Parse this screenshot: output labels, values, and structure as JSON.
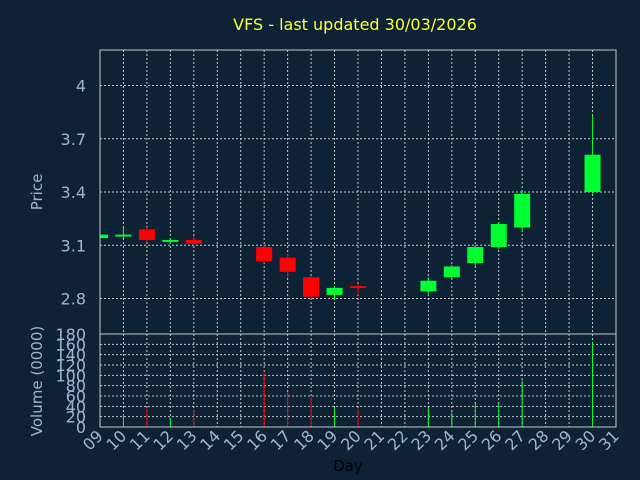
{
  "chart_data": {
    "type": "candlestick",
    "title": "VFS - last updated 30/03/2026",
    "xlabel": "Day",
    "price_panel": {
      "ylabel": "Price",
      "ylim": [
        2.6,
        4.2
      ],
      "yticks": [
        "2.8",
        "3.1",
        "3.4",
        "3.7",
        "4"
      ],
      "grid": true
    },
    "volume_panel": {
      "ylabel": "Volume (0000)",
      "ylim": [
        0,
        180
      ],
      "yticks": [
        "0",
        "20",
        "40",
        "60",
        "80",
        "100",
        "120",
        "140",
        "160",
        "180"
      ],
      "grid": true
    },
    "x_ticks": [
      "09",
      "10",
      "11",
      "12",
      "13",
      "14",
      "15",
      "16",
      "17",
      "18",
      "19",
      "20",
      "21",
      "22",
      "23",
      "24",
      "25",
      "26",
      "27",
      "28",
      "29",
      "30",
      "31"
    ],
    "colors": {
      "up": "#00ff33",
      "down": "#ff0000",
      "grid": "#c8c8c8",
      "axis": "#c8c8c8"
    },
    "candles": [
      {
        "day": 9,
        "open": 3.14,
        "close": 3.16,
        "high": 3.16,
        "low": 3.14,
        "volume": 0
      },
      {
        "day": 10,
        "open": 3.15,
        "close": 3.16,
        "high": 3.2,
        "low": 3.14,
        "volume": 25
      },
      {
        "day": 11,
        "open": 3.19,
        "close": 3.13,
        "high": 3.2,
        "low": 3.12,
        "volume": 36
      },
      {
        "day": 12,
        "open": 3.12,
        "close": 3.13,
        "high": 3.14,
        "low": 3.11,
        "volume": 18
      },
      {
        "day": 13,
        "open": 3.13,
        "close": 3.11,
        "high": 3.15,
        "low": 3.1,
        "volume": 33
      },
      {
        "day": 16,
        "open": 3.09,
        "close": 3.01,
        "high": 3.1,
        "low": 3.0,
        "volume": 105
      },
      {
        "day": 17,
        "open": 3.03,
        "close": 2.95,
        "high": 3.05,
        "low": 2.92,
        "volume": 68
      },
      {
        "day": 18,
        "open": 2.92,
        "close": 2.81,
        "high": 2.93,
        "low": 2.8,
        "volume": 58
      },
      {
        "day": 19,
        "open": 2.82,
        "close": 2.86,
        "high": 2.87,
        "low": 2.79,
        "volume": 38
      },
      {
        "day": 20,
        "open": 2.87,
        "close": 2.86,
        "high": 2.88,
        "low": 2.82,
        "volume": 35
      },
      {
        "day": 23,
        "open": 2.84,
        "close": 2.9,
        "high": 2.92,
        "low": 2.82,
        "volume": 38
      },
      {
        "day": 24,
        "open": 2.92,
        "close": 2.98,
        "high": 2.99,
        "low": 2.91,
        "volume": 28
      },
      {
        "day": 25,
        "open": 3.0,
        "close": 3.09,
        "high": 3.1,
        "low": 2.98,
        "volume": 45
      },
      {
        "day": 26,
        "open": 3.09,
        "close": 3.22,
        "high": 3.23,
        "low": 3.08,
        "volume": 45
      },
      {
        "day": 27,
        "open": 3.2,
        "close": 3.39,
        "high": 3.41,
        "low": 3.18,
        "volume": 90
      },
      {
        "day": 30,
        "open": 3.4,
        "close": 3.61,
        "high": 3.83,
        "low": 3.39,
        "volume": 165
      }
    ]
  }
}
